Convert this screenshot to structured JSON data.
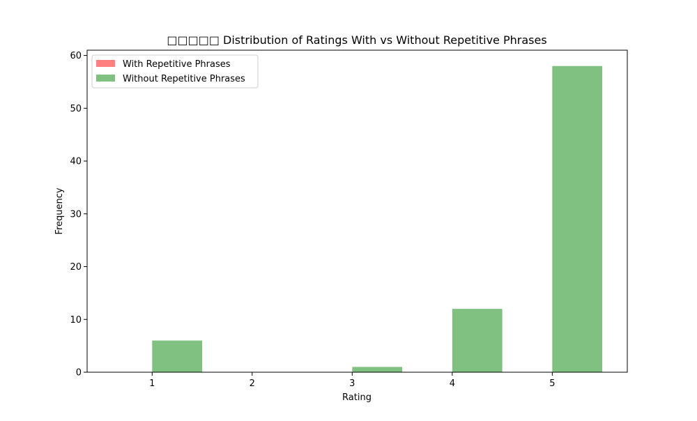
{
  "chart_data": {
    "type": "bar",
    "title": "□□□□□ Distribution of Ratings With vs Without Repetitive Phrases",
    "xlabel": "Rating",
    "ylabel": "Frequency",
    "x_ticks": [
      "1",
      "2",
      "3",
      "4",
      "5"
    ],
    "y_ticks": [
      "0",
      "10",
      "20",
      "30",
      "40",
      "50",
      "60"
    ],
    "xlim": [
      0.35,
      5.75
    ],
    "ylim": [
      0,
      61
    ],
    "grid": false,
    "legend_position": "top-left",
    "series": [
      {
        "name": "With Repetitive Phrases",
        "color": "#ff8080",
        "bars": []
      },
      {
        "name": "Without Repetitive Phrases",
        "color": "#80c080",
        "bars": [
          {
            "x_start": 1.0,
            "x_end": 1.5,
            "value": 6
          },
          {
            "x_start": 3.0,
            "x_end": 3.5,
            "value": 1
          },
          {
            "x_start": 4.0,
            "x_end": 4.5,
            "value": 12
          },
          {
            "x_start": 5.0,
            "x_end": 5.5,
            "value": 58
          }
        ]
      }
    ]
  }
}
